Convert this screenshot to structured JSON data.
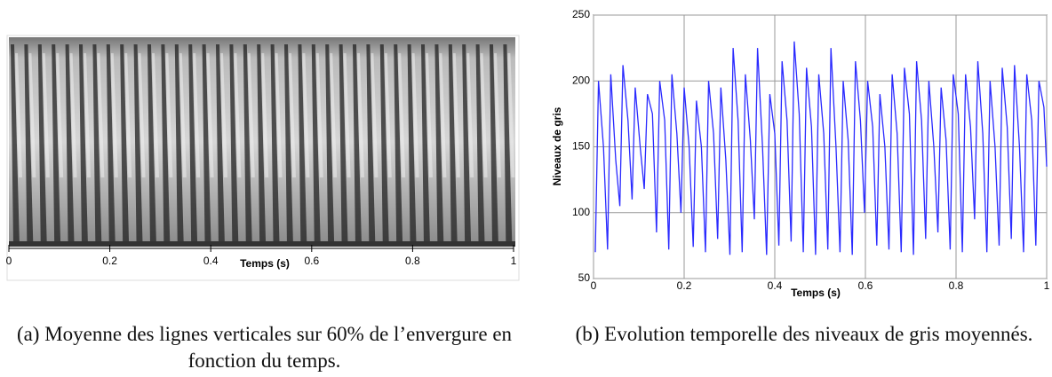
{
  "chart_data": [
    {
      "type": "image",
      "xlabel": "Temps (s)",
      "xlim": [
        0,
        1
      ],
      "xticks": [
        0,
        0.2,
        0.4,
        0.6,
        0.8,
        1
      ],
      "caption": "(a) Moyenne des lignes verticales sur 60% de l’envergure en fonction du temps."
    },
    {
      "type": "line",
      "xlabel": "Temps (s)",
      "ylabel": "Niveaux de gris",
      "color": "#2a2aff",
      "grid": true,
      "xlim": [
        0,
        1
      ],
      "xticks": [
        0,
        0.2,
        0.4,
        0.6,
        0.8,
        1
      ],
      "ylim": [
        50,
        250
      ],
      "yticks": [
        50,
        100,
        150,
        200,
        250
      ],
      "x": [
        0.004,
        0.011,
        0.022,
        0.031,
        0.038,
        0.049,
        0.058,
        0.065,
        0.076,
        0.085,
        0.092,
        0.103,
        0.112,
        0.119,
        0.13,
        0.139,
        0.146,
        0.157,
        0.166,
        0.173,
        0.184,
        0.193,
        0.2,
        0.211,
        0.22,
        0.227,
        0.238,
        0.247,
        0.254,
        0.265,
        0.274,
        0.281,
        0.292,
        0.301,
        0.308,
        0.319,
        0.328,
        0.335,
        0.346,
        0.355,
        0.362,
        0.373,
        0.382,
        0.389,
        0.4,
        0.409,
        0.416,
        0.427,
        0.436,
        0.443,
        0.454,
        0.463,
        0.47,
        0.481,
        0.49,
        0.497,
        0.508,
        0.517,
        0.524,
        0.535,
        0.544,
        0.551,
        0.562,
        0.571,
        0.578,
        0.589,
        0.598,
        0.605,
        0.616,
        0.625,
        0.632,
        0.643,
        0.652,
        0.659,
        0.67,
        0.679,
        0.686,
        0.697,
        0.706,
        0.713,
        0.724,
        0.733,
        0.74,
        0.751,
        0.76,
        0.767,
        0.778,
        0.787,
        0.794,
        0.805,
        0.814,
        0.821,
        0.832,
        0.841,
        0.848,
        0.859,
        0.868,
        0.875,
        0.886,
        0.895,
        0.902,
        0.913,
        0.922,
        0.929,
        0.94,
        0.949,
        0.956,
        0.967,
        0.976,
        0.983,
        0.994,
        1.0
      ],
      "values": [
        70,
        200,
        150,
        72,
        205,
        140,
        105,
        212,
        170,
        110,
        195,
        150,
        118,
        190,
        175,
        85,
        200,
        170,
        72,
        205,
        160,
        100,
        195,
        150,
        74,
        185,
        150,
        70,
        200,
        160,
        80,
        195,
        140,
        68,
        225,
        170,
        70,
        205,
        155,
        95,
        225,
        150,
        68,
        190,
        160,
        75,
        215,
        170,
        78,
        230,
        175,
        70,
        210,
        165,
        68,
        205,
        160,
        72,
        225,
        150,
        70,
        200,
        155,
        68,
        215,
        170,
        100,
        200,
        165,
        75,
        190,
        150,
        72,
        205,
        160,
        70,
        210,
        175,
        68,
        215,
        170,
        80,
        200,
        150,
        85,
        195,
        155,
        72,
        205,
        175,
        70,
        205,
        165,
        95,
        215,
        160,
        70,
        200,
        150,
        75,
        210,
        165,
        80,
        212,
        150,
        70,
        205,
        170,
        75,
        200,
        180,
        135
      ],
      "caption": "(b) Evolution temporelle des niveaux de gris moyennés."
    }
  ]
}
